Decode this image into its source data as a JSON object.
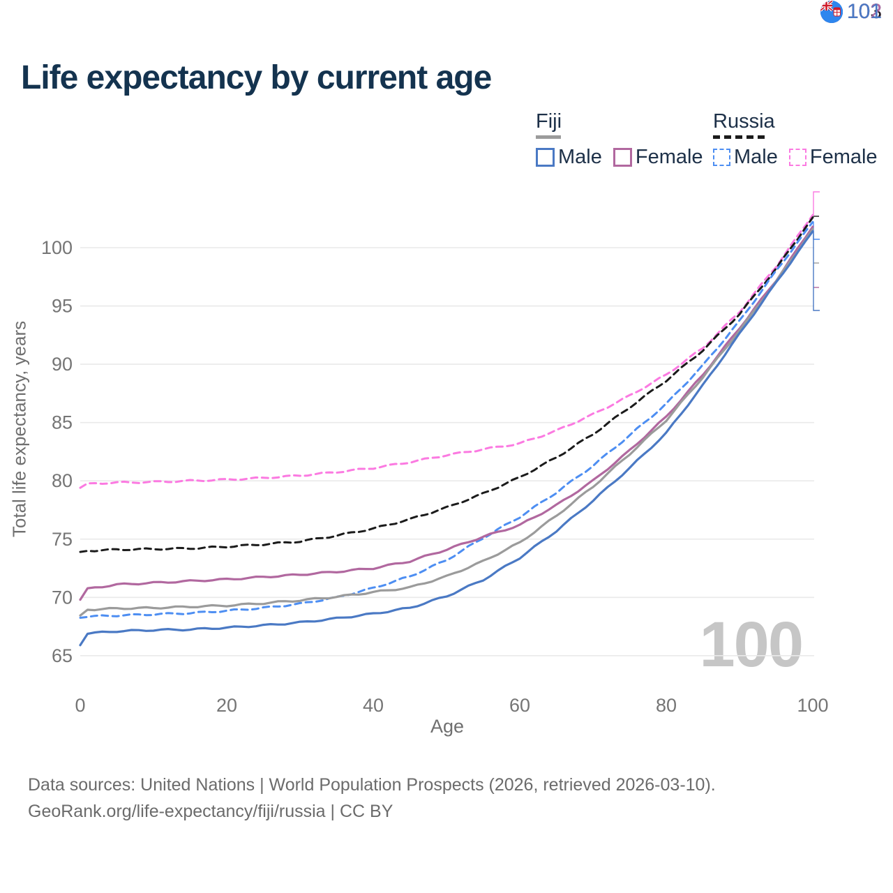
{
  "title": "Life expectancy by current age",
  "watermark": "100",
  "legend": {
    "groups": [
      {
        "label": "Fiji",
        "items": [
          {
            "label": "Male"
          },
          {
            "label": "Female"
          }
        ]
      },
      {
        "label": "Russia",
        "items": [
          {
            "label": "Male"
          },
          {
            "label": "Female"
          }
        ]
      }
    ]
  },
  "footer": {
    "line1": "Data sources: United Nations | World Population Prospects (2026, retrieved 2026-03-10).",
    "line2": "GeoRank.org/life-expectancy/fiji/russia | CC BY"
  },
  "chart_data": {
    "type": "line",
    "title": "Life expectancy by current age",
    "xlabel": "Age",
    "ylabel": "Total life expectancy, years",
    "xlim": [
      0,
      100
    ],
    "ylim": [
      63,
      104
    ],
    "xticks": [
      0,
      20,
      40,
      60,
      80,
      100
    ],
    "yticks": [
      65,
      70,
      75,
      80,
      85,
      90,
      95,
      100
    ],
    "grid": "horizontal",
    "grid_color": "#e9e9e9",
    "tick_color": "#757575",
    "legend_position": "top-right",
    "x": [
      0,
      1,
      5,
      10,
      15,
      20,
      25,
      30,
      35,
      40,
      45,
      50,
      55,
      60,
      65,
      70,
      75,
      80,
      85,
      90,
      95,
      100
    ],
    "series": [
      {
        "name": "Russia Female",
        "country": "Russia",
        "sex": "Female",
        "color": "#fb7ae1",
        "dash": "dashed",
        "values": [
          79.4,
          79.75,
          79.85,
          79.9,
          80.0,
          80.1,
          80.25,
          80.45,
          80.75,
          81.1,
          81.6,
          82.2,
          82.7,
          83.2,
          84.3,
          85.7,
          87.3,
          89.1,
          91.4,
          94.5,
          98.4,
          102.8
        ]
      },
      {
        "name": "Russia Total",
        "country": "Russia",
        "sex": "Both",
        "color": "#1b1b1b",
        "dash": "dashed",
        "values": [
          73.9,
          74.0,
          74.1,
          74.15,
          74.2,
          74.35,
          74.55,
          74.8,
          75.3,
          75.9,
          76.7,
          77.7,
          78.9,
          80.3,
          82.0,
          84.0,
          86.3,
          88.6,
          91.2,
          94.3,
          98.2,
          102.6
        ]
      },
      {
        "name": "Russia Male",
        "country": "Russia",
        "sex": "Male",
        "color": "#4d8ef2",
        "dash": "dashed",
        "values": [
          68.25,
          68.35,
          68.45,
          68.55,
          68.65,
          68.85,
          69.1,
          69.45,
          70.0,
          70.8,
          71.8,
          73.2,
          75.1,
          76.9,
          79.0,
          81.3,
          83.9,
          86.6,
          89.9,
          93.7,
          98.0,
          102.2
        ]
      },
      {
        "name": "Fiji Female",
        "country": "Fiji",
        "sex": "Female",
        "color": "#b1689f",
        "dash": "solid",
        "values": [
          69.8,
          70.75,
          71.1,
          71.25,
          71.4,
          71.55,
          71.75,
          71.95,
          72.2,
          72.5,
          73.1,
          74.1,
          75.2,
          76.2,
          77.9,
          80.0,
          82.6,
          85.5,
          89.1,
          93.1,
          97.2,
          101.8
        ]
      },
      {
        "name": "Fiji Total",
        "country": "Fiji",
        "sex": "Both",
        "color": "#9b9b9b",
        "dash": "solid",
        "values": [
          68.45,
          68.95,
          69.05,
          69.1,
          69.2,
          69.3,
          69.5,
          69.75,
          70.05,
          70.45,
          70.85,
          71.8,
          73.1,
          74.7,
          77.0,
          79.5,
          82.3,
          85.2,
          88.9,
          92.9,
          97.1,
          101.6
        ]
      },
      {
        "name": "Fiji Male",
        "country": "Fiji",
        "sex": "Male",
        "color": "#4a79c4",
        "dash": "solid",
        "values": [
          65.9,
          66.9,
          67.1,
          67.2,
          67.25,
          67.4,
          67.6,
          67.85,
          68.2,
          68.6,
          69.1,
          70.1,
          71.5,
          73.4,
          75.7,
          78.3,
          81.1,
          84.1,
          88.2,
          92.6,
          97.0,
          101.4
        ]
      }
    ],
    "end_labels": [
      {
        "value": "103",
        "color": "#fb7ae1",
        "series": 0,
        "flag": "russia",
        "row_y": 275,
        "connector": "elbow"
      },
      {
        "value": "103",
        "color": "#1f1f1f",
        "series": 1,
        "flag": "russia",
        "row_y": 310,
        "connector": "tick"
      },
      {
        "value": "102",
        "color": "#4d8ef2",
        "series": 2,
        "flag": "russia",
        "row_y": 343,
        "connector": "elbow"
      },
      {
        "value": "102",
        "color": "#9b9b9b",
        "series": 4,
        "flag": "fiji",
        "row_y": 377,
        "connector": "tick"
      },
      {
        "value": "102",
        "color": "#b1689f",
        "series": 3,
        "flag": "fiji",
        "row_y": 412,
        "connector": "tick"
      },
      {
        "value": "101",
        "color": "#4a79c4",
        "series": 5,
        "flag": "fiji",
        "row_y": 445,
        "connector": "elbow"
      }
    ]
  }
}
